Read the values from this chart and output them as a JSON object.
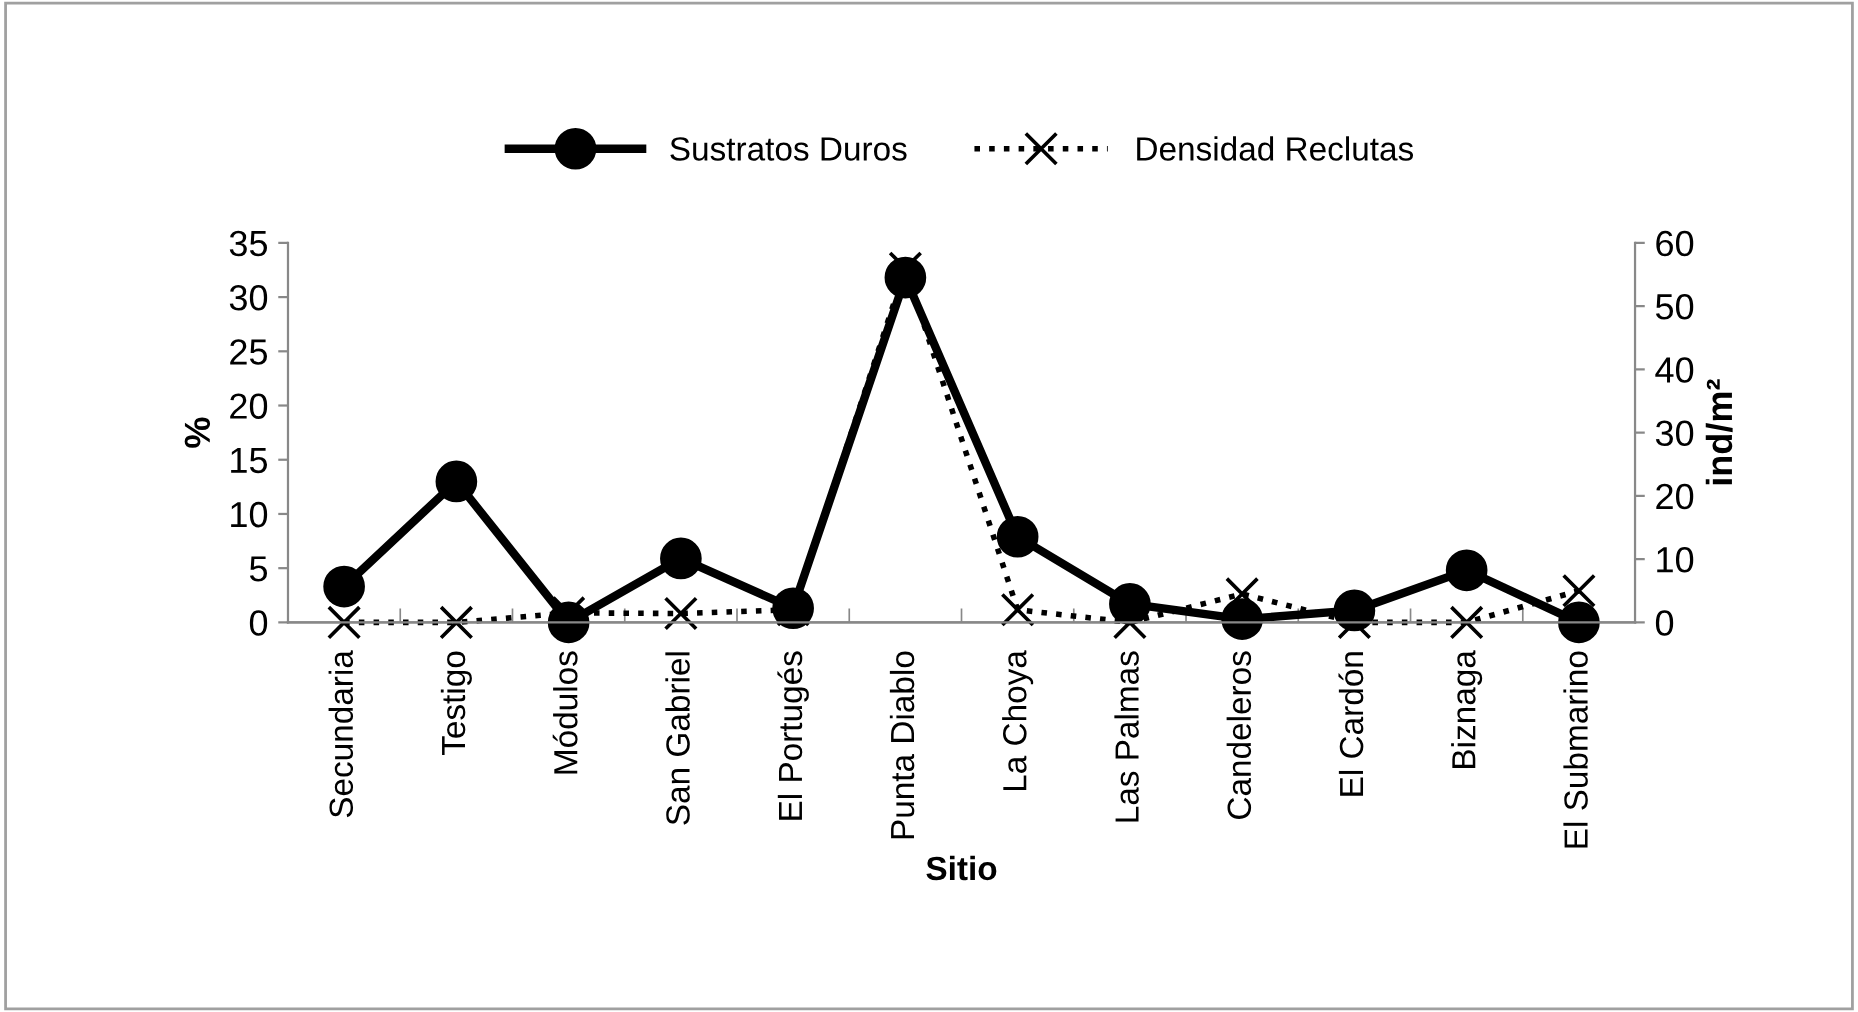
{
  "chart_data": {
    "type": "line",
    "xlabel": "Sitio",
    "ylabel": "%",
    "y2label": "ind/m²",
    "categories": [
      "Secundaria",
      "Testigo",
      "Módulos",
      "San Gabriel",
      "El Portugés",
      "Punta Diablo",
      "La Choya",
      "Las Palmas",
      "Candeleros",
      "El Cardón",
      "Biznaga",
      "El Submarino"
    ],
    "series": [
      {
        "name": "Sustratos Duros",
        "color": "#000000",
        "marker": "circle",
        "line_style": "solid",
        "values": [
          3.3,
          13,
          0,
          5.9,
          1.3,
          31.8,
          7.9,
          1.7,
          0.3,
          1.1,
          4.8,
          0
        ]
      },
      {
        "name": "Densidad Reclutas",
        "color": "#000000",
        "marker": "cross",
        "line_style": "dotted",
        "axis": "y2",
        "values": [
          0,
          0,
          1.5,
          1.4,
          2,
          56,
          2,
          0,
          4.5,
          0,
          0,
          5
        ]
      }
    ],
    "ylim": [
      0,
      35
    ],
    "yticks": [
      0,
      5,
      10,
      15,
      20,
      25,
      30,
      35
    ],
    "y2lim": [
      0,
      60
    ],
    "y2ticks": [
      0,
      10,
      20,
      30,
      40,
      50,
      60
    ],
    "grid": false,
    "legend": "top"
  }
}
